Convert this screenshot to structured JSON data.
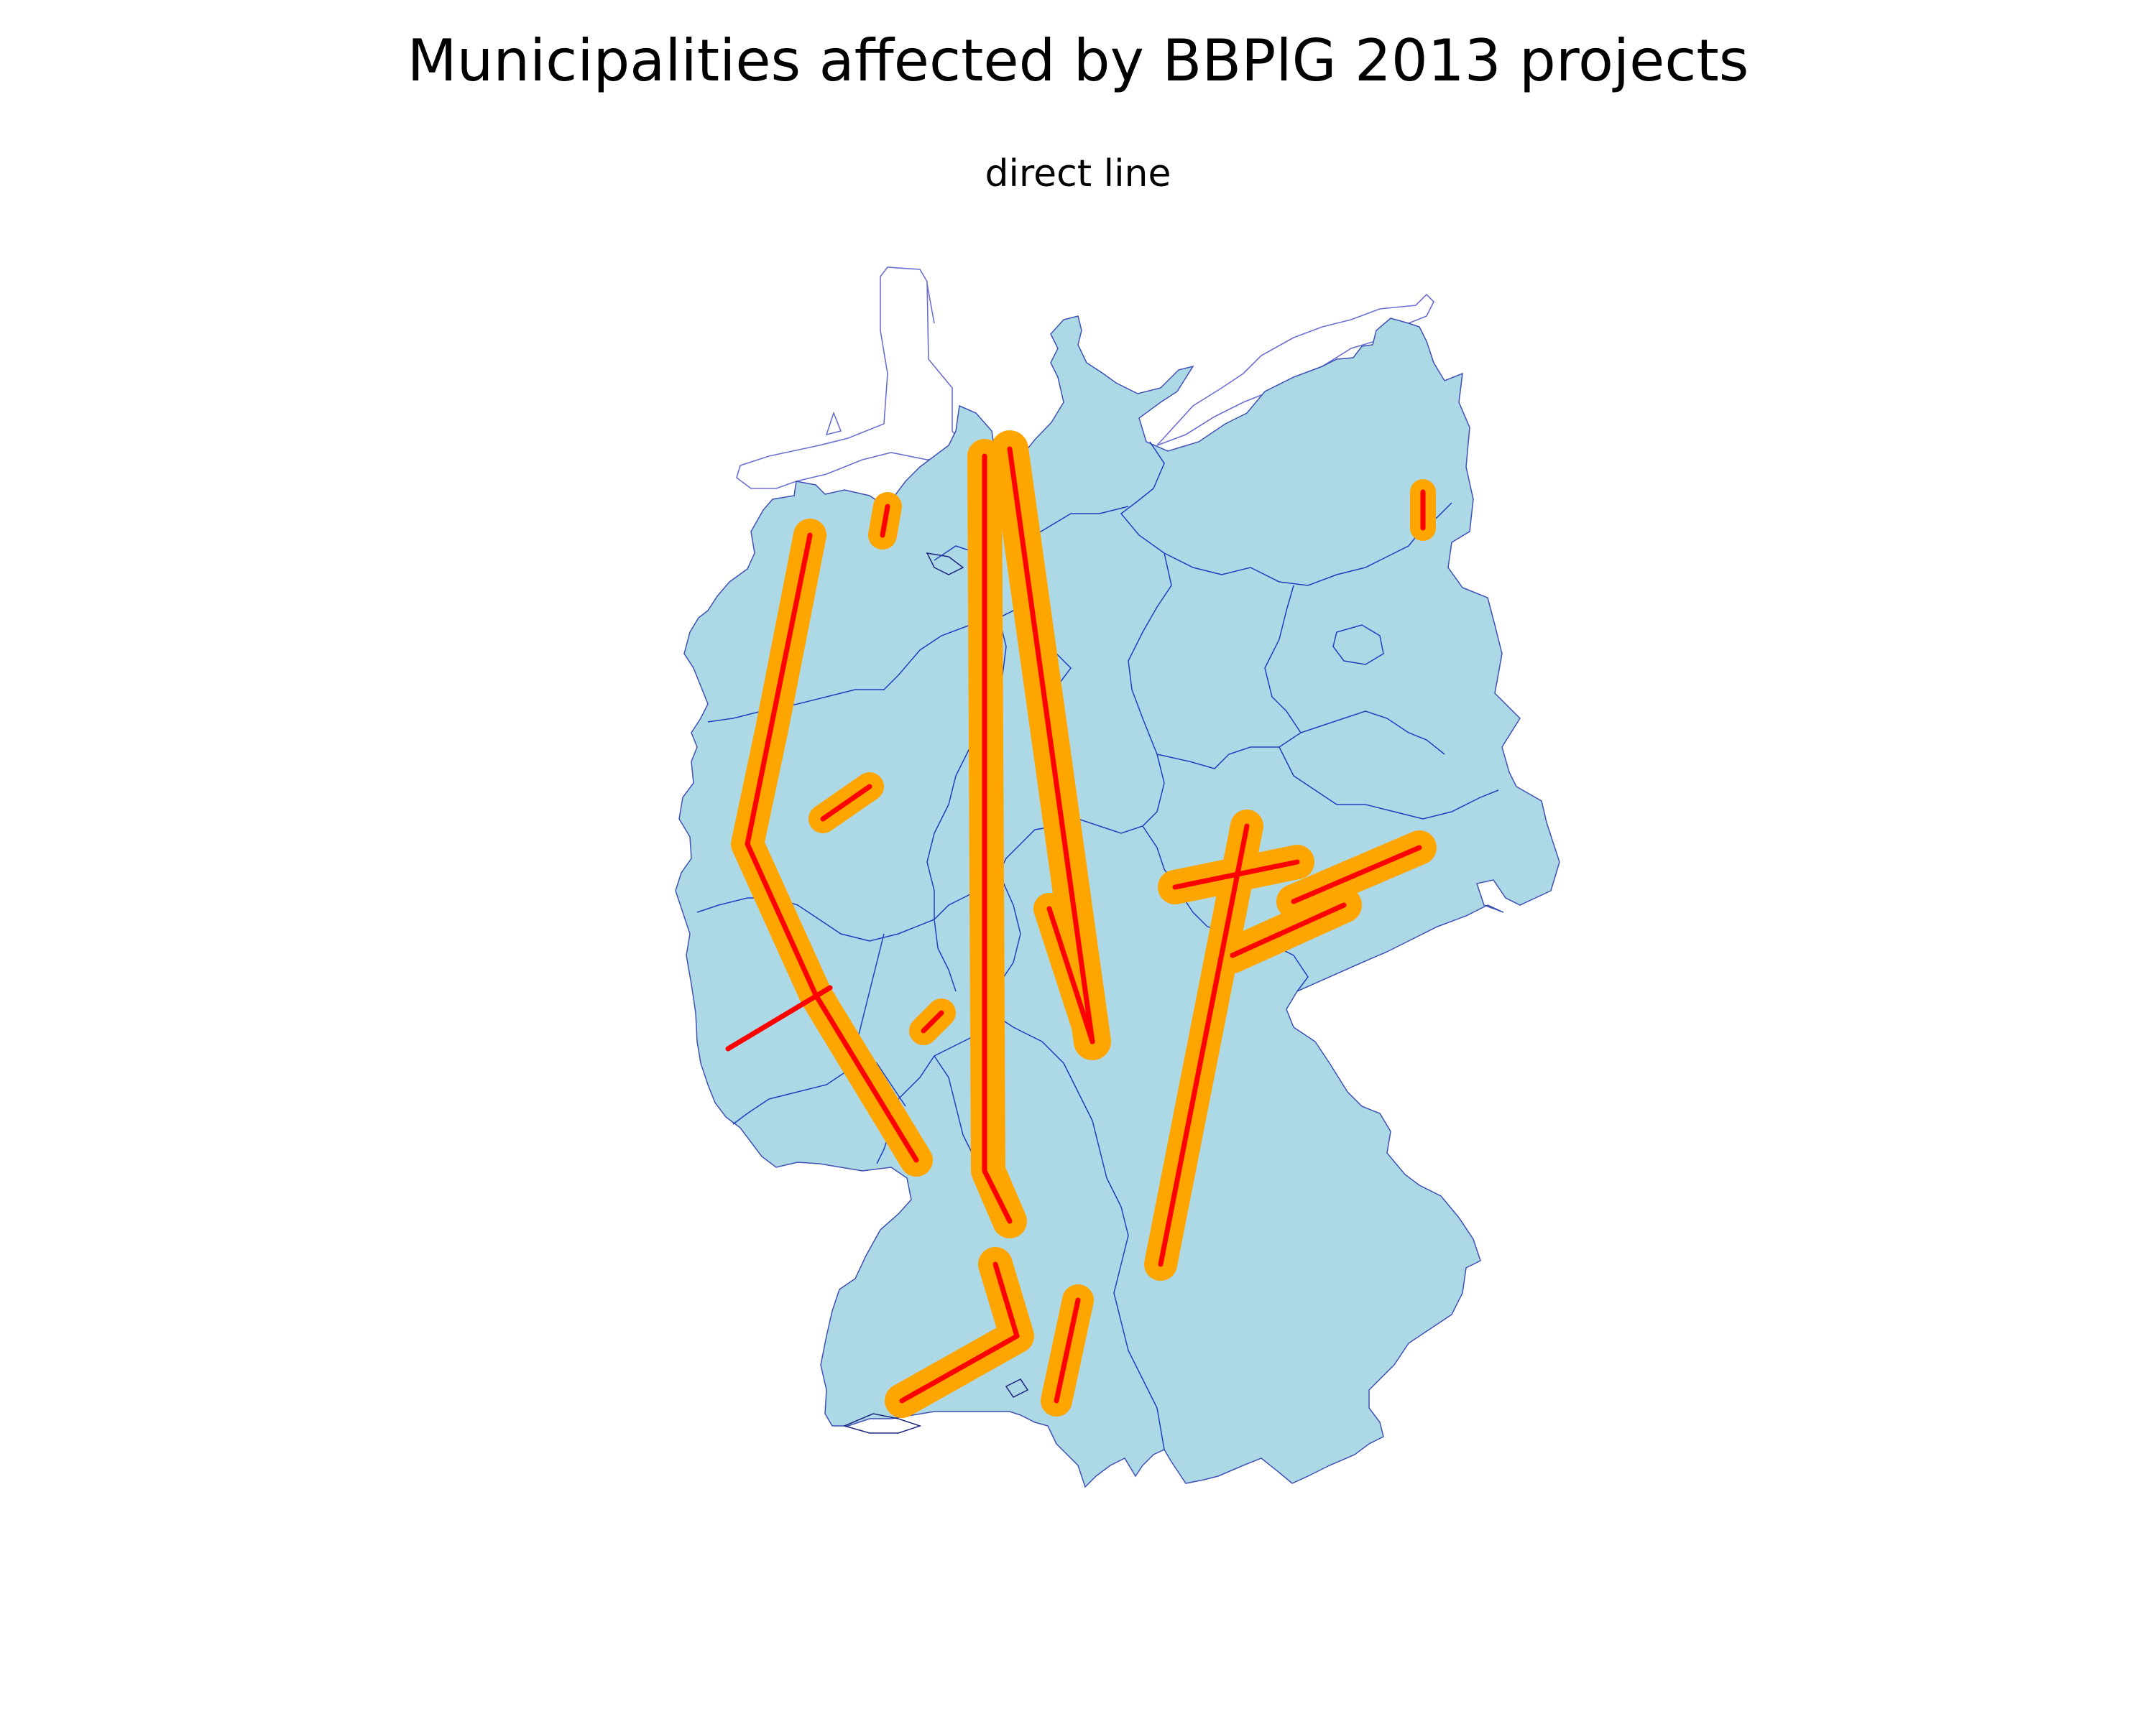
{
  "title": "Municipalities affected by BBPlG 2013 projects",
  "subtitle": "direct line",
  "colors": {
    "background": "#ffffff",
    "land": "#add8e6",
    "state_borders": "#1f3fbf",
    "water_outline": "#1a237e",
    "affected_municipalities": "#ffa500",
    "direct_lines": "#ff0000"
  },
  "map": {
    "region": "Germany",
    "layers": [
      "municipalities",
      "state-borders",
      "affected-municipalities",
      "direct-lines"
    ],
    "projects_drawn": 19
  }
}
